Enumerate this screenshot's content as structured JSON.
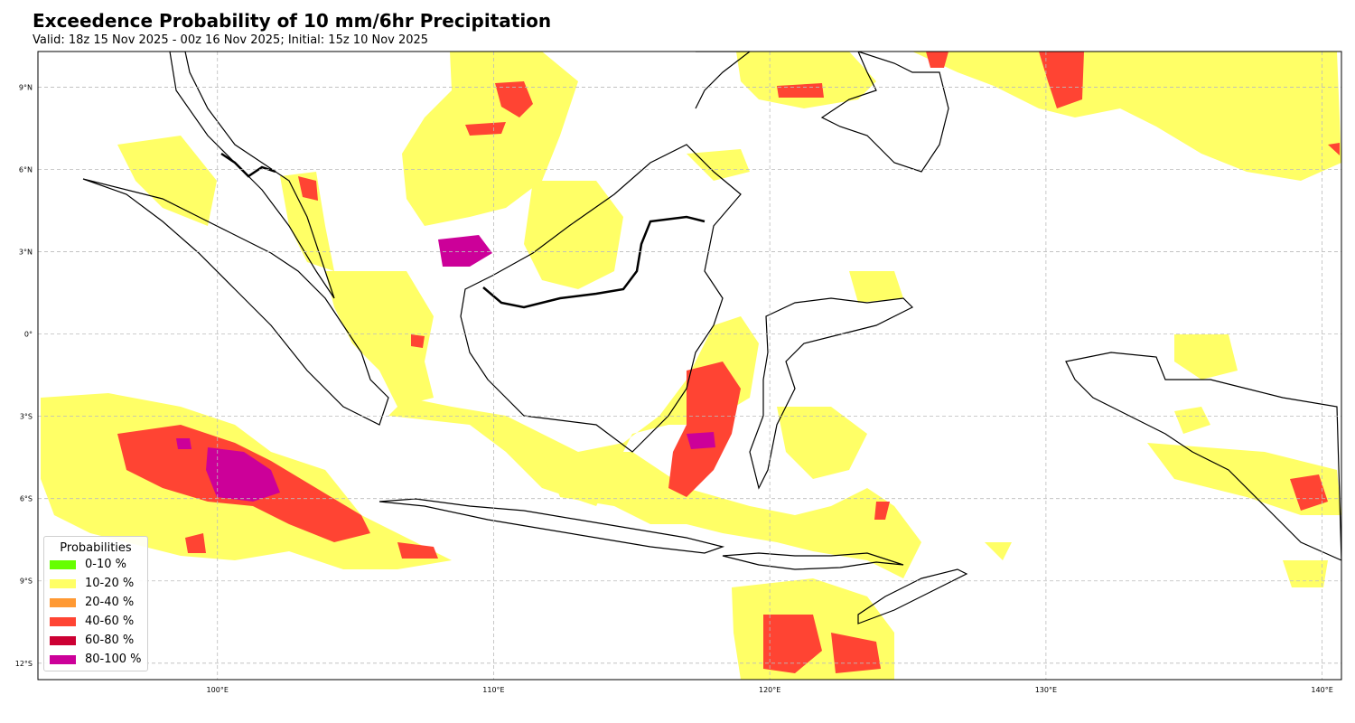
{
  "title": "Exceedence Probability of 10 mm/6hr Precipitation",
  "subtitle": "Valid: 18z 15 Nov 2025 - 00z 16 Nov 2025; Initial: 15z 10 Nov 2025",
  "map": {
    "x_ticks": [
      {
        "lon": 100,
        "label": "100°E"
      },
      {
        "lon": 110,
        "label": "110°E"
      },
      {
        "lon": 120,
        "label": "120°E"
      },
      {
        "lon": 130,
        "label": "130°E"
      },
      {
        "lon": 140,
        "label": "140°E"
      }
    ],
    "y_ticks": [
      {
        "lat": 9,
        "label": "9°N"
      },
      {
        "lat": 6,
        "label": "6°N"
      },
      {
        "lat": 3,
        "label": "3°N"
      },
      {
        "lat": 0,
        "label": "0°"
      },
      {
        "lat": -3,
        "label": "3°S"
      },
      {
        "lat": -6,
        "label": "6°S"
      },
      {
        "lat": -9,
        "label": "9°S"
      },
      {
        "lat": -12,
        "label": "12°S"
      }
    ],
    "extent": {
      "lon_min": 93.5,
      "lon_max": 140.7,
      "lat_min": -12.6,
      "lat_max": 10.3
    },
    "gridlines": true
  },
  "legend": {
    "title": "Probabilities",
    "items": [
      {
        "label": "0-10 %",
        "color": "#66ff00"
      },
      {
        "label": "10-20 %",
        "color": "#ffff66"
      },
      {
        "label": "20-40 %",
        "color": "#ff9933"
      },
      {
        "label": "40-60 %",
        "color": "#ff4433"
      },
      {
        "label": "60-80 %",
        "color": "#cc0033"
      },
      {
        "label": "80-100 %",
        "color": "#cc0099"
      }
    ]
  }
}
